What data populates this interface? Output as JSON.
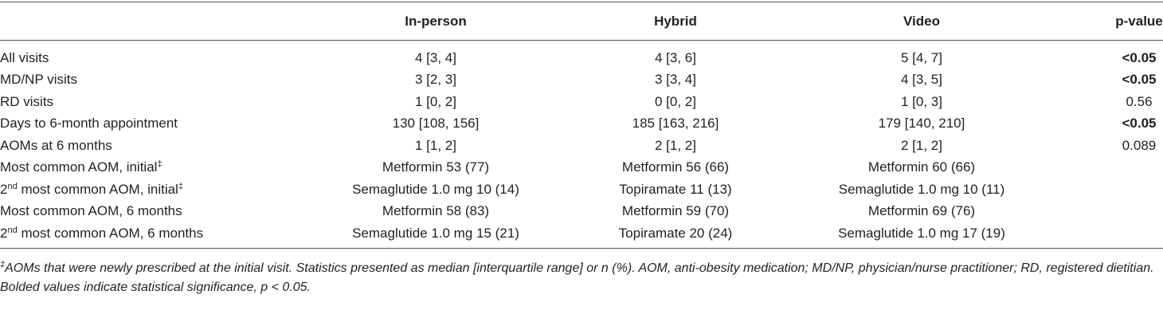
{
  "table": {
    "header": [
      "In-person",
      "Hybrid",
      "Video",
      "p-value"
    ],
    "rows": [
      {
        "label": [
          {
            "text": "All visits"
          }
        ],
        "cells": [
          "4 [3, 4]",
          "4 [3, 6]",
          "5 [4, 7]"
        ],
        "p": {
          "text": "<0.05",
          "bold": true
        }
      },
      {
        "label": [
          {
            "text": "MD/NP visits"
          }
        ],
        "cells": [
          "3 [2, 3]",
          "3 [3, 4]",
          "4 [3, 5]"
        ],
        "p": {
          "text": "<0.05",
          "bold": true
        }
      },
      {
        "label": [
          {
            "text": "RD visits"
          }
        ],
        "cells": [
          "1 [0, 2]",
          "0 [0, 2]",
          "1 [0, 3]"
        ],
        "p": {
          "text": "0.56",
          "bold": false
        }
      },
      {
        "label": [
          {
            "text": "Days to 6-month appointment"
          }
        ],
        "cells": [
          "130 [108, 156]",
          "185 [163, 216]",
          "179 [140, 210]"
        ],
        "p": {
          "text": "<0.05",
          "bold": true
        }
      },
      {
        "label": [
          {
            "text": "AOMs at 6 months"
          }
        ],
        "cells": [
          "1 [1, 2]",
          "2 [1, 2]",
          "2 [1, 2]"
        ],
        "p": {
          "text": "0.089",
          "bold": false
        }
      },
      {
        "label": [
          {
            "text": "Most common AOM, initial"
          },
          {
            "sup": "‡"
          }
        ],
        "cells": [
          "Metformin 53 (77)",
          "Metformin 56 (66)",
          "Metformin 60 (66)"
        ],
        "p": null
      },
      {
        "label": [
          {
            "text": "2"
          },
          {
            "sup": "nd"
          },
          {
            "text": " most common AOM, initial"
          },
          {
            "sup": "‡"
          }
        ],
        "cells": [
          "Semaglutide 1.0 mg 10 (14)",
          "Topiramate 11 (13)",
          "Semaglutide 1.0 mg 10 (11)"
        ],
        "p": null
      },
      {
        "label": [
          {
            "text": "Most common AOM, 6 months"
          }
        ],
        "cells": [
          "Metformin 58 (83)",
          "Metformin 59 (70)",
          "Metformin 69 (76)"
        ],
        "p": null
      },
      {
        "label": [
          {
            "text": "2"
          },
          {
            "sup": "nd"
          },
          {
            "text": " most common AOM, 6 months"
          }
        ],
        "cells": [
          "Semaglutide 1.0 mg 15 (21)",
          "Topiramate 20 (24)",
          "Semaglutide 1.0 mg 17 (19)"
        ],
        "p": null
      }
    ]
  },
  "footnotes": [
    [
      {
        "sup": "‡"
      },
      {
        "text": "AOMs that were newly prescribed at the initial visit. Statistics presented as median [interquartile range] or n (%). AOM, anti-obesity medication; MD/NP, physician/nurse practitioner; RD, registered dietitian."
      }
    ],
    [
      {
        "text": "Bolded values indicate statistical significance, p < 0.05."
      }
    ]
  ]
}
